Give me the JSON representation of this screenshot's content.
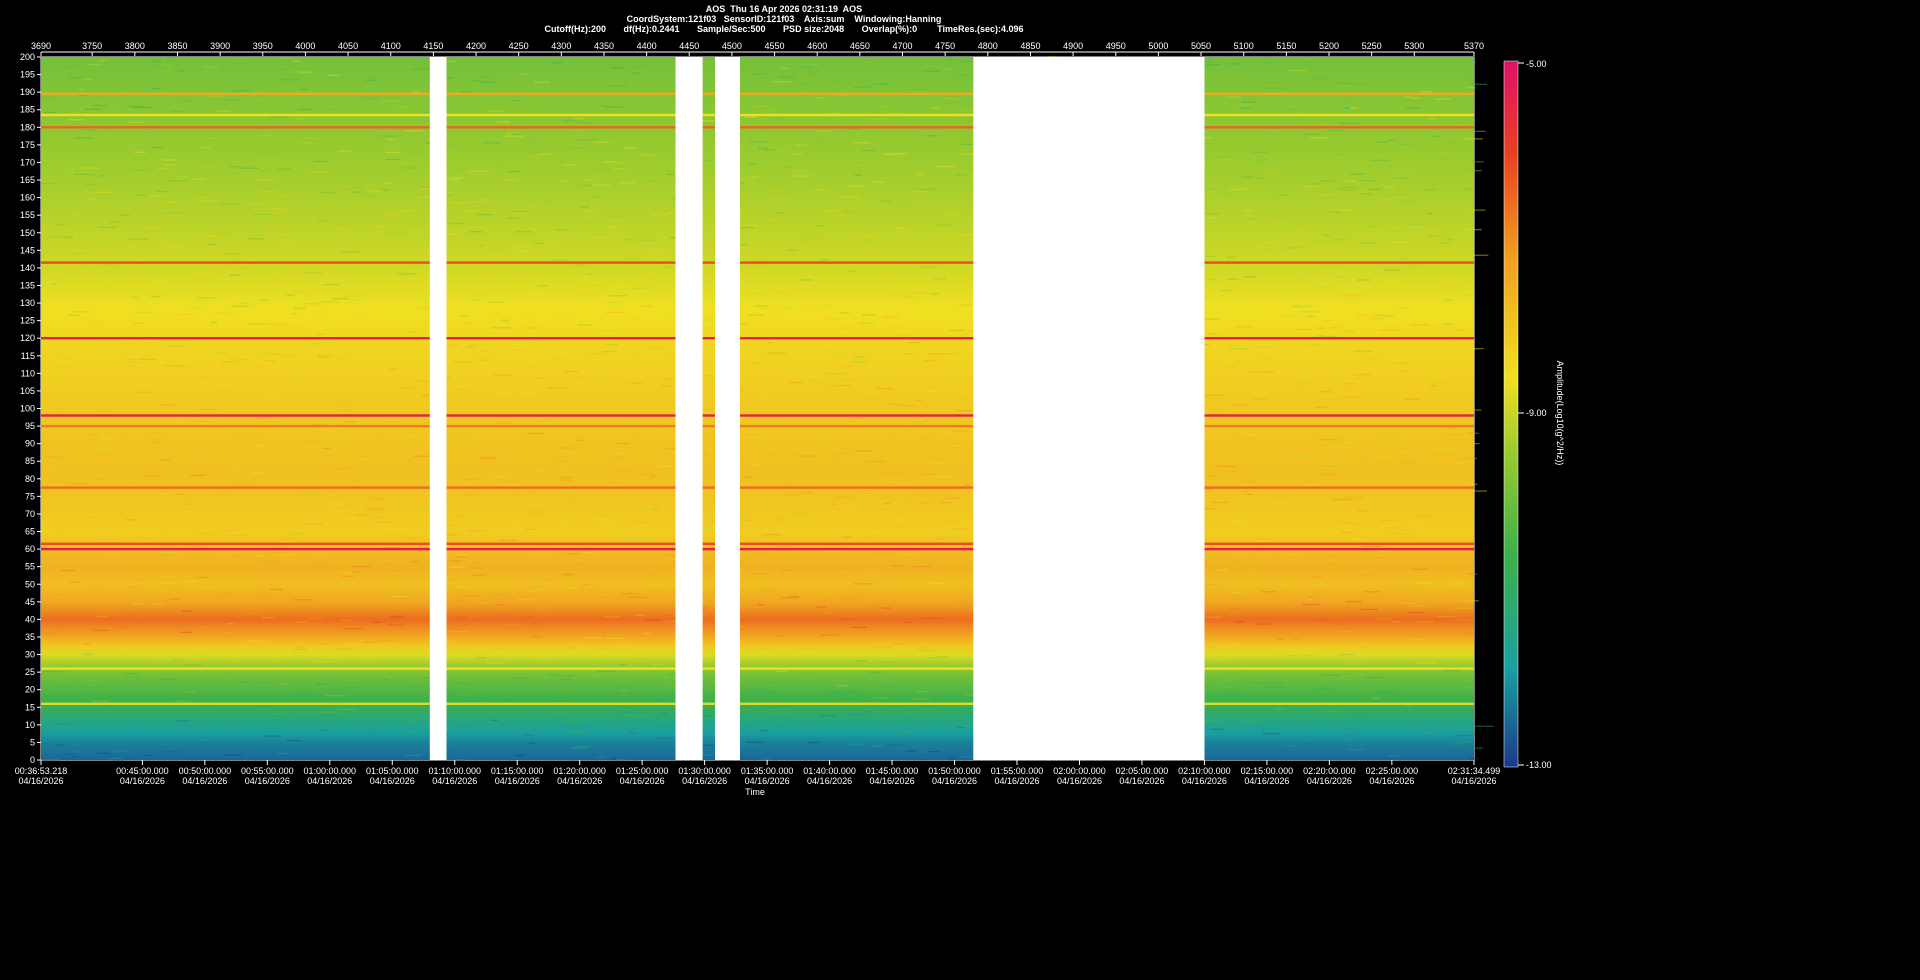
{
  "header": {
    "line1": "AOS  Thu 16 Apr 2026 02:31:19  AOS",
    "line2": "CoordSystem:121f03   SensorID:121f03    Axis:sum    Windowing:Hanning",
    "line3": "Cutoff(Hz):200       df(Hz):0.2441       Sample/Sec:500       PSD size:2048       Overlap(%):0        TimeRes.(sec):4.096"
  },
  "chart_data": {
    "type": "heatmap",
    "title": "AOS  Thu 16 Apr 2026 02:31:19  AOS",
    "xlabel": "Time",
    "ylabel": "",
    "colorbar_label": "Amplitude(Log10(g^2/Hz))",
    "colorbar_ticks": [
      "-5.00",
      "-9.00",
      "-13.00"
    ],
    "colorbar_range": [
      -13,
      -5
    ],
    "colors": [
      "#1a3a8c",
      "#1aa0a0",
      "#3cb04a",
      "#9ccc2e",
      "#f0e020",
      "#f0a020",
      "#e84020",
      "#e0106a"
    ],
    "ylim": [
      0,
      200
    ],
    "y_ticks": [
      "200",
      "195",
      "190",
      "185",
      "180",
      "175",
      "170",
      "165",
      "160",
      "155",
      "150",
      "145",
      "140",
      "135",
      "130",
      "125",
      "120",
      "115",
      "110",
      "105",
      "100",
      "95",
      "90",
      "85",
      "80",
      "75",
      "70",
      "65",
      "60",
      "55",
      "50",
      "45",
      "40",
      "35",
      "30",
      "25",
      "20",
      "15",
      "10",
      "5",
      "0"
    ],
    "top_axis_range": [
      3690,
      5370
    ],
    "top_ticks": [
      "3690",
      "3750",
      "3800",
      "3850",
      "3900",
      "3950",
      "4000",
      "4050",
      "4100",
      "4150",
      "4200",
      "4250",
      "4300",
      "4350",
      "4400",
      "4450",
      "4500",
      "4550",
      "4600",
      "4650",
      "4700",
      "4750",
      "4800",
      "4850",
      "4900",
      "4950",
      "5000",
      "5050",
      "5100",
      "5150",
      "5200",
      "5250",
      "5300",
      "5370"
    ],
    "bottom_ticks": [
      {
        "time": "00:36:53.218",
        "date": "04/16/2026"
      },
      {
        "time": "00:45:00.000",
        "date": "04/16/2026"
      },
      {
        "time": "00:50:00.000",
        "date": "04/16/2026"
      },
      {
        "time": "00:55:00.000",
        "date": "04/16/2026"
      },
      {
        "time": "01:00:00.000",
        "date": "04/16/2026"
      },
      {
        "time": "01:05:00.000",
        "date": "04/16/2026"
      },
      {
        "time": "01:10:00.000",
        "date": "04/16/2026"
      },
      {
        "time": "01:15:00.000",
        "date": "04/16/2026"
      },
      {
        "time": "01:20:00.000",
        "date": "04/16/2026"
      },
      {
        "time": "01:25:00.000",
        "date": "04/16/2026"
      },
      {
        "time": "01:30:00.000",
        "date": "04/16/2026"
      },
      {
        "time": "01:35:00.000",
        "date": "04/16/2026"
      },
      {
        "time": "01:40:00.000",
        "date": "04/16/2026"
      },
      {
        "time": "01:45:00.000",
        "date": "04/16/2026"
      },
      {
        "time": "01:50:00.000",
        "date": "04/16/2026"
      },
      {
        "time": "01:55:00.000",
        "date": "04/16/2026"
      },
      {
        "time": "02:00:00.000",
        "date": "04/16/2026"
      },
      {
        "time": "02:05:00.000",
        "date": "04/16/2026"
      },
      {
        "time": "02:10:00.000",
        "date": "04/16/2026"
      },
      {
        "time": "02:15:00.000",
        "date": "04/16/2026"
      },
      {
        "time": "02:20:00.000",
        "date": "04/16/2026"
      },
      {
        "time": "02:25:00.000",
        "date": "04/16/2026"
      },
      {
        "time": "02:31:34.499",
        "date": "04/16/2026"
      }
    ],
    "data_gaps_time": [
      [
        "01:08:00",
        "01:09:20"
      ],
      [
        "01:27:40",
        "01:29:50"
      ],
      [
        "01:30:50",
        "01:32:50"
      ],
      [
        "01:51:30",
        "02:10:00"
      ]
    ],
    "spectral_profile_log10": [
      {
        "hz": 0,
        "level": -12.5
      },
      {
        "hz": 5,
        "level": -12.2
      },
      {
        "hz": 10,
        "level": -11.6
      },
      {
        "hz": 15,
        "level": -10.8
      },
      {
        "hz": 20,
        "level": -10.3
      },
      {
        "hz": 25,
        "level": -9.8
      },
      {
        "hz": 30,
        "level": -8.8
      },
      {
        "hz": 35,
        "level": -7.4
      },
      {
        "hz": 40,
        "level": -6.6
      },
      {
        "hz": 45,
        "level": -7.4
      },
      {
        "hz": 50,
        "level": -7.9
      },
      {
        "hz": 55,
        "level": -7.6
      },
      {
        "hz": 65,
        "level": -8.2
      },
      {
        "hz": 80,
        "level": -7.9
      },
      {
        "hz": 100,
        "level": -8.1
      },
      {
        "hz": 120,
        "level": -8.4
      },
      {
        "hz": 140,
        "level": -8.9
      },
      {
        "hz": 170,
        "level": -9.4
      },
      {
        "hz": 200,
        "level": -9.9
      }
    ],
    "tonal_lines_hz": [
      {
        "hz": 120,
        "level": -5.3
      },
      {
        "hz": 98,
        "level": -5.3
      },
      {
        "hz": 60,
        "level": -5.2
      },
      {
        "hz": 141.5,
        "level": -6.2
      },
      {
        "hz": 180,
        "level": -6.5
      },
      {
        "hz": 189.5,
        "level": -7.5
      },
      {
        "hz": 183.5,
        "level": -8.6
      },
      {
        "hz": 95,
        "level": -6.8
      },
      {
        "hz": 77.5,
        "level": -6.6
      },
      {
        "hz": 61.5,
        "level": -6.2
      },
      {
        "hz": 26,
        "level": -8.6
      },
      {
        "hz": 16,
        "level": -8.8
      }
    ]
  }
}
